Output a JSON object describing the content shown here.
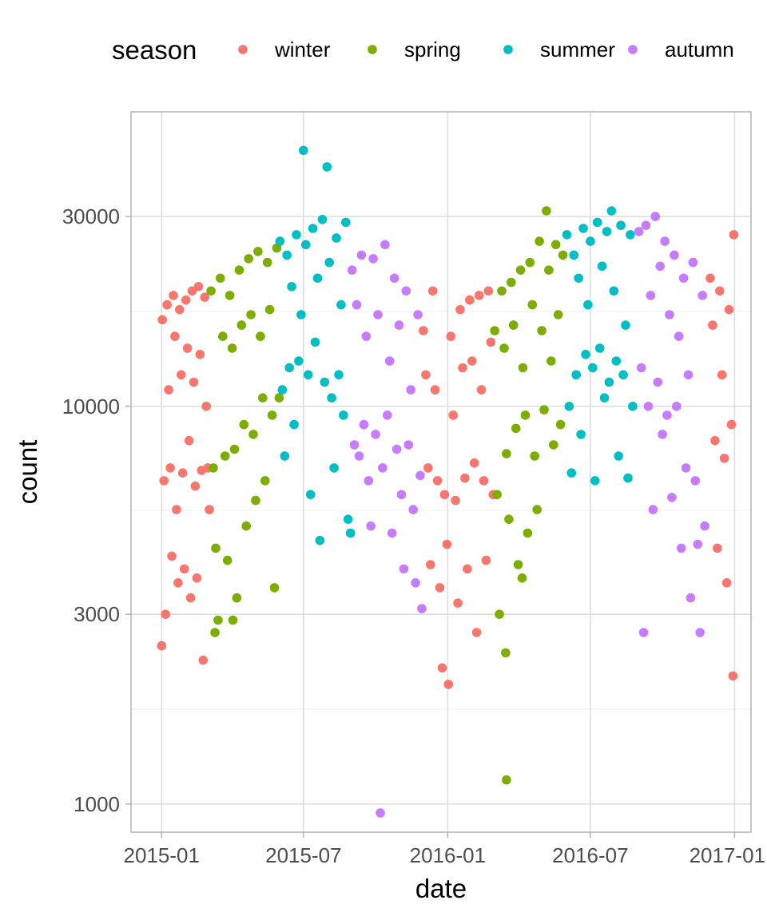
{
  "chart_data": {
    "type": "scatter",
    "xlabel": "date",
    "ylabel": "count",
    "y_scale": "log10",
    "ylim": [
      850,
      55000
    ],
    "xlim": [
      "2014-11-23",
      "2017-01-22"
    ],
    "grid": true,
    "x_ticks": [
      "2015-01-01",
      "2015-07-01",
      "2016-01-01",
      "2016-07-01",
      "2017-01-01"
    ],
    "x_tick_labels": [
      "2015-01",
      "2015-07",
      "2016-01",
      "2016-07",
      "2017-01"
    ],
    "y_ticks": [
      1000,
      3000,
      10000,
      30000
    ],
    "y_tick_labels": [
      "1000",
      "3000",
      "10000",
      "30000"
    ],
    "legend": {
      "title": "season",
      "position": "top"
    },
    "series": [
      {
        "name": "winter",
        "color": "#F8766D",
        "points": [
          [
            "2015-01-01",
            2500
          ],
          [
            "2015-01-02",
            16500
          ],
          [
            "2015-01-04",
            6500
          ],
          [
            "2015-01-06",
            3000
          ],
          [
            "2015-01-08",
            18000
          ],
          [
            "2015-01-10",
            11000
          ],
          [
            "2015-01-12",
            7000
          ],
          [
            "2015-01-14",
            4200
          ],
          [
            "2015-01-16",
            19000
          ],
          [
            "2015-01-18",
            15000
          ],
          [
            "2015-01-20",
            5500
          ],
          [
            "2015-01-22",
            3600
          ],
          [
            "2015-01-24",
            17500
          ],
          [
            "2015-01-26",
            12000
          ],
          [
            "2015-01-28",
            6800
          ],
          [
            "2015-01-30",
            3900
          ],
          [
            "2015-02-01",
            18500
          ],
          [
            "2015-02-03",
            14000
          ],
          [
            "2015-02-05",
            8200
          ],
          [
            "2015-02-07",
            3300
          ],
          [
            "2015-02-09",
            19500
          ],
          [
            "2015-02-11",
            11500
          ],
          [
            "2015-02-13",
            6300
          ],
          [
            "2015-02-15",
            3700
          ],
          [
            "2015-02-17",
            20000
          ],
          [
            "2015-02-19",
            13500
          ],
          [
            "2015-02-21",
            6900
          ],
          [
            "2015-02-23",
            2300
          ],
          [
            "2015-02-25",
            18800
          ],
          [
            "2015-02-27",
            10000
          ],
          [
            "2015-03-01",
            7000
          ],
          [
            "2015-03-03",
            5500
          ],
          [
            "2015-12-01",
            15500
          ],
          [
            "2015-12-04",
            12000
          ],
          [
            "2015-12-07",
            7000
          ],
          [
            "2015-12-10",
            4000
          ],
          [
            "2015-12-13",
            19500
          ],
          [
            "2015-12-16",
            11000
          ],
          [
            "2015-12-19",
            6500
          ],
          [
            "2015-12-22",
            3500
          ],
          [
            "2015-12-25",
            2200
          ],
          [
            "2015-12-28",
            6000
          ],
          [
            "2015-12-31",
            4500
          ],
          [
            "2016-01-02",
            2000
          ],
          [
            "2016-01-05",
            15000
          ],
          [
            "2016-01-08",
            9500
          ],
          [
            "2016-01-11",
            5800
          ],
          [
            "2016-01-14",
            3200
          ],
          [
            "2016-01-17",
            17500
          ],
          [
            "2016-01-20",
            12500
          ],
          [
            "2016-01-23",
            6600
          ],
          [
            "2016-01-26",
            3900
          ],
          [
            "2016-01-29",
            18500
          ],
          [
            "2016-02-01",
            13000
          ],
          [
            "2016-02-04",
            7200
          ],
          [
            "2016-02-07",
            2700
          ],
          [
            "2016-02-10",
            19000
          ],
          [
            "2016-02-13",
            11000
          ],
          [
            "2016-02-16",
            6500
          ],
          [
            "2016-02-19",
            4100
          ],
          [
            "2016-02-22",
            19500
          ],
          [
            "2016-02-25",
            14500
          ],
          [
            "2016-02-28",
            6000
          ],
          [
            "2016-12-01",
            21000
          ],
          [
            "2016-12-04",
            16000
          ],
          [
            "2016-12-07",
            8200
          ],
          [
            "2016-12-10",
            4400
          ],
          [
            "2016-12-13",
            19500
          ],
          [
            "2016-12-16",
            12000
          ],
          [
            "2016-12-19",
            7400
          ],
          [
            "2016-12-22",
            3600
          ],
          [
            "2016-12-25",
            17500
          ],
          [
            "2016-12-28",
            9000
          ],
          [
            "2016-12-30",
            2100
          ],
          [
            "2016-12-31",
            27000
          ]
        ]
      },
      {
        "name": "spring",
        "color": "#7CAE00",
        "points": [
          [
            "2015-03-05",
            19500
          ],
          [
            "2015-03-08",
            7000
          ],
          [
            "2015-03-11",
            4400
          ],
          [
            "2015-03-14",
            2900
          ],
          [
            "2015-03-17",
            21000
          ],
          [
            "2015-03-20",
            15000
          ],
          [
            "2015-03-23",
            7500
          ],
          [
            "2015-03-26",
            4100
          ],
          [
            "2015-03-29",
            19000
          ],
          [
            "2015-04-01",
            14000
          ],
          [
            "2015-04-04",
            7800
          ],
          [
            "2015-04-07",
            3300
          ],
          [
            "2015-04-10",
            22000
          ],
          [
            "2015-04-13",
            16000
          ],
          [
            "2015-04-16",
            9000
          ],
          [
            "2015-04-19",
            5000
          ],
          [
            "2015-04-22",
            23500
          ],
          [
            "2015-04-25",
            17000
          ],
          [
            "2015-04-28",
            8500
          ],
          [
            "2015-05-01",
            5800
          ],
          [
            "2015-05-04",
            24500
          ],
          [
            "2015-05-07",
            15000
          ],
          [
            "2015-05-10",
            10500
          ],
          [
            "2015-05-13",
            6500
          ],
          [
            "2015-05-16",
            23000
          ],
          [
            "2015-05-19",
            17500
          ],
          [
            "2015-05-22",
            9500
          ],
          [
            "2015-05-25",
            3500
          ],
          [
            "2015-05-28",
            25000
          ],
          [
            "2015-05-31",
            10500
          ],
          [
            "2015-03-10",
            2700
          ],
          [
            "2015-04-02",
            2900
          ],
          [
            "2016-03-01",
            15500
          ],
          [
            "2016-03-04",
            6000
          ],
          [
            "2016-03-07",
            3000
          ],
          [
            "2016-03-10",
            19500
          ],
          [
            "2016-03-13",
            14000
          ],
          [
            "2016-03-16",
            7600
          ],
          [
            "2016-03-19",
            5200
          ],
          [
            "2016-03-22",
            20500
          ],
          [
            "2016-03-25",
            16000
          ],
          [
            "2016-03-28",
            8800
          ],
          [
            "2016-03-31",
            4000
          ],
          [
            "2016-04-03",
            22000
          ],
          [
            "2016-04-06",
            12500
          ],
          [
            "2016-04-09",
            9500
          ],
          [
            "2016-04-12",
            4800
          ],
          [
            "2016-04-15",
            23000
          ],
          [
            "2016-04-18",
            18000
          ],
          [
            "2016-04-21",
            7500
          ],
          [
            "2016-04-24",
            5500
          ],
          [
            "2016-04-27",
            26000
          ],
          [
            "2016-04-30",
            15500
          ],
          [
            "2016-05-03",
            9800
          ],
          [
            "2016-05-06",
            31000
          ],
          [
            "2016-05-09",
            22000
          ],
          [
            "2016-05-12",
            13000
          ],
          [
            "2016-05-15",
            8000
          ],
          [
            "2016-05-18",
            25500
          ],
          [
            "2016-05-21",
            17000
          ],
          [
            "2016-05-24",
            9000
          ],
          [
            "2016-05-27",
            24000
          ],
          [
            "2016-03-15",
            2400
          ],
          [
            "2016-03-16",
            1150
          ],
          [
            "2016-04-05",
            3700
          ]
        ]
      },
      {
        "name": "summer",
        "color": "#00BFC4",
        "points": [
          [
            "2015-06-01",
            26000
          ],
          [
            "2015-06-04",
            11000
          ],
          [
            "2015-06-07",
            7500
          ],
          [
            "2015-06-10",
            24000
          ],
          [
            "2015-06-13",
            12500
          ],
          [
            "2015-06-16",
            20000
          ],
          [
            "2015-06-19",
            9000
          ],
          [
            "2015-06-22",
            27000
          ],
          [
            "2015-06-25",
            13000
          ],
          [
            "2015-06-28",
            17000
          ],
          [
            "2015-07-01",
            44000
          ],
          [
            "2015-07-04",
            25500
          ],
          [
            "2015-07-07",
            12000
          ],
          [
            "2015-07-10",
            6000
          ],
          [
            "2015-07-13",
            28000
          ],
          [
            "2015-07-16",
            14500
          ],
          [
            "2015-07-19",
            21000
          ],
          [
            "2015-07-22",
            4600
          ],
          [
            "2015-07-25",
            29500
          ],
          [
            "2015-07-28",
            11500
          ],
          [
            "2015-07-31",
            40000
          ],
          [
            "2015-08-03",
            23000
          ],
          [
            "2015-08-06",
            10500
          ],
          [
            "2015-08-09",
            7000
          ],
          [
            "2015-08-12",
            26500
          ],
          [
            "2015-08-15",
            12000
          ],
          [
            "2015-08-18",
            18000
          ],
          [
            "2015-08-21",
            9500
          ],
          [
            "2015-08-24",
            29000
          ],
          [
            "2015-08-27",
            5200
          ],
          [
            "2015-08-30",
            4800
          ],
          [
            "2016-06-01",
            27000
          ],
          [
            "2016-06-04",
            10000
          ],
          [
            "2016-06-07",
            6800
          ],
          [
            "2016-06-10",
            24000
          ],
          [
            "2016-06-13",
            12000
          ],
          [
            "2016-06-16",
            21000
          ],
          [
            "2016-06-19",
            8500
          ],
          [
            "2016-06-22",
            28000
          ],
          [
            "2016-06-25",
            13500
          ],
          [
            "2016-06-28",
            18000
          ],
          [
            "2016-07-01",
            26000
          ],
          [
            "2016-07-04",
            12500
          ],
          [
            "2016-07-07",
            6500
          ],
          [
            "2016-07-10",
            29000
          ],
          [
            "2016-07-13",
            14000
          ],
          [
            "2016-07-16",
            22500
          ],
          [
            "2016-07-19",
            10500
          ],
          [
            "2016-07-22",
            27500
          ],
          [
            "2016-07-25",
            11500
          ],
          [
            "2016-07-28",
            31000
          ],
          [
            "2016-07-31",
            19500
          ],
          [
            "2016-08-03",
            13000
          ],
          [
            "2016-08-06",
            7500
          ],
          [
            "2016-08-09",
            28500
          ],
          [
            "2016-08-12",
            12000
          ],
          [
            "2016-08-15",
            16000
          ],
          [
            "2016-08-18",
            6600
          ],
          [
            "2016-08-21",
            27000
          ],
          [
            "2016-08-24",
            10000
          ]
        ]
      },
      {
        "name": "autumn",
        "color": "#C77CFF",
        "points": [
          [
            "2015-09-01",
            22000
          ],
          [
            "2015-09-04",
            8000
          ],
          [
            "2015-09-07",
            18000
          ],
          [
            "2015-09-10",
            7500
          ],
          [
            "2015-09-13",
            24000
          ],
          [
            "2015-09-16",
            9000
          ],
          [
            "2015-09-19",
            15000
          ],
          [
            "2015-09-22",
            6500
          ],
          [
            "2015-09-25",
            5000
          ],
          [
            "2015-09-28",
            23500
          ],
          [
            "2015-10-01",
            8500
          ],
          [
            "2015-10-04",
            17000
          ],
          [
            "2015-10-07",
            950
          ],
          [
            "2015-10-10",
            7000
          ],
          [
            "2015-10-13",
            25500
          ],
          [
            "2015-10-16",
            9500
          ],
          [
            "2015-10-19",
            13000
          ],
          [
            "2015-10-22",
            4800
          ],
          [
            "2015-10-25",
            21000
          ],
          [
            "2015-10-28",
            7800
          ],
          [
            "2015-10-31",
            16000
          ],
          [
            "2015-11-03",
            6000
          ],
          [
            "2015-11-06",
            3900
          ],
          [
            "2015-11-09",
            19500
          ],
          [
            "2015-11-12",
            8000
          ],
          [
            "2015-11-15",
            11000
          ],
          [
            "2015-11-18",
            5500
          ],
          [
            "2015-11-21",
            3600
          ],
          [
            "2015-11-24",
            17000
          ],
          [
            "2015-11-27",
            6700
          ],
          [
            "2015-11-29",
            3100
          ],
          [
            "2016-09-01",
            27500
          ],
          [
            "2016-09-04",
            12500
          ],
          [
            "2016-09-07",
            2700
          ],
          [
            "2016-09-10",
            28500
          ],
          [
            "2016-09-13",
            10000
          ],
          [
            "2016-09-16",
            19000
          ],
          [
            "2016-09-19",
            5500
          ],
          [
            "2016-09-22",
            30000
          ],
          [
            "2016-09-25",
            11500
          ],
          [
            "2016-09-28",
            22500
          ],
          [
            "2016-10-01",
            8500
          ],
          [
            "2016-10-04",
            26000
          ],
          [
            "2016-10-07",
            9500
          ],
          [
            "2016-10-10",
            17000
          ],
          [
            "2016-10-13",
            5900
          ],
          [
            "2016-10-16",
            24000
          ],
          [
            "2016-10-19",
            10000
          ],
          [
            "2016-10-22",
            15000
          ],
          [
            "2016-10-25",
            4400
          ],
          [
            "2016-10-28",
            21000
          ],
          [
            "2016-10-31",
            7000
          ],
          [
            "2016-11-03",
            12000
          ],
          [
            "2016-11-06",
            3300
          ],
          [
            "2016-11-09",
            23000
          ],
          [
            "2016-11-12",
            6500
          ],
          [
            "2016-11-15",
            4500
          ],
          [
            "2016-11-18",
            2700
          ],
          [
            "2016-11-21",
            19000
          ],
          [
            "2016-11-24",
            5000
          ]
        ]
      }
    ]
  }
}
